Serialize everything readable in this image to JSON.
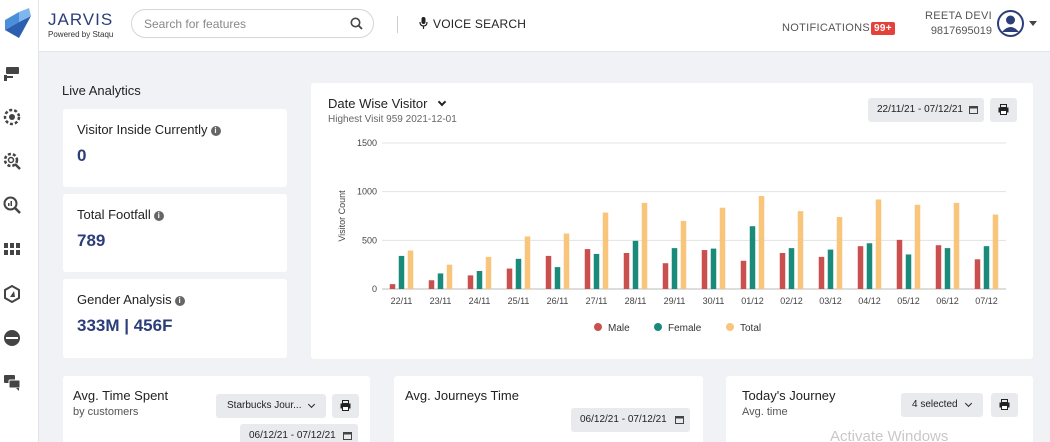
{
  "app": {
    "title": "JARVIS",
    "subtitle": "Powered by Staqu"
  },
  "search": {
    "placeholder": "Search for features"
  },
  "voice_search": {
    "label": "VOICE SEARCH"
  },
  "notifications": {
    "label": "NOTIFICATIONS",
    "badge": "99+"
  },
  "user": {
    "name": "REETA DEVI",
    "phone": "9817695019"
  },
  "sidebar": {
    "icons": [
      "logo-icon",
      "cctv-camera-icon",
      "gear-badge-icon",
      "gear-search-icon",
      "magnify-analytics-icon",
      "grid-layout-icon",
      "compass-icon",
      "toggle-circle-icon",
      "chat-icon"
    ]
  },
  "live": {
    "title": "Live Analytics",
    "kpis": [
      {
        "label": "Visitor Inside Currently",
        "value": "0"
      },
      {
        "label": "Total Footfall",
        "value": "789"
      },
      {
        "label": "Gender Analysis",
        "value": "333M | 456F"
      }
    ]
  },
  "chart_panel": {
    "title": "Date Wise Visitor",
    "subtitle": "Highest Visit 959 2021-12-01",
    "date_range": "22/11/21 - 07/12/21"
  },
  "chart_data": {
    "type": "bar",
    "categories": [
      "22/11",
      "23/11",
      "24/11",
      "25/11",
      "26/11",
      "27/11",
      "28/11",
      "29/11",
      "30/11",
      "01/12",
      "02/12",
      "03/12",
      "04/12",
      "05/12",
      "06/12",
      "07/12"
    ],
    "series": [
      {
        "name": "Male",
        "color": "#c9504f",
        "values": [
          50,
          90,
          140,
          210,
          340,
          410,
          370,
          265,
          400,
          290,
          370,
          330,
          440,
          505,
          450,
          305
        ]
      },
      {
        "name": "Female",
        "color": "#1a8a7a",
        "values": [
          340,
          160,
          185,
          310,
          225,
          360,
          495,
          420,
          415,
          645,
          420,
          405,
          470,
          355,
          420,
          440
        ]
      },
      {
        "name": "Total",
        "color": "#f8c57a",
        "values": [
          395,
          250,
          330,
          540,
          570,
          785,
          885,
          700,
          835,
          955,
          800,
          740,
          920,
          865,
          885,
          765
        ]
      }
    ],
    "ylabel": "Visitor Count",
    "yticks": [
      0,
      500,
      1000,
      1500
    ],
    "ylim": [
      0,
      1500
    ],
    "grid": true,
    "legend": "bottom"
  },
  "bottom": {
    "time_spent": {
      "title": "Avg. Time Spent",
      "subtitle": "by customers",
      "select": "Starbucks Jour...",
      "date": "06/12/21 - 07/12/21"
    },
    "journeys_time": {
      "title": "Avg. Journeys Time",
      "date": "06/12/21 - 07/12/21"
    },
    "todays_journey": {
      "title": "Today's Journey",
      "subtitle": "Avg. time",
      "select": "4 selected"
    }
  },
  "watermark": "Activate Windows"
}
